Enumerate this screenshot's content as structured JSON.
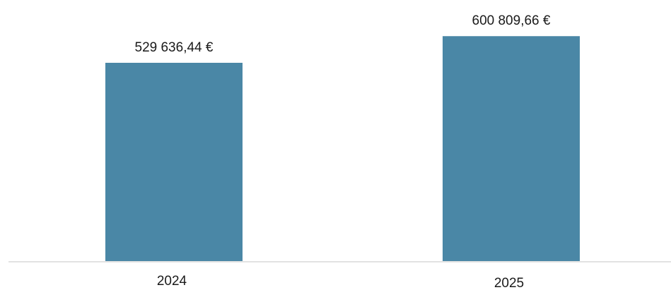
{
  "colors": {
    "bar": "#4a87a6",
    "axis": "#d9d9d9"
  },
  "chart_data": {
    "type": "bar",
    "categories": [
      "2024",
      "2025"
    ],
    "values": [
      529636.44,
      600809.66
    ],
    "data_labels": [
      "529 636,44 €",
      "600 809,66 €"
    ],
    "title": "",
    "xlabel": "",
    "ylabel": "",
    "ylim": [
      0,
      620000
    ],
    "grid": false,
    "legend": "none"
  }
}
